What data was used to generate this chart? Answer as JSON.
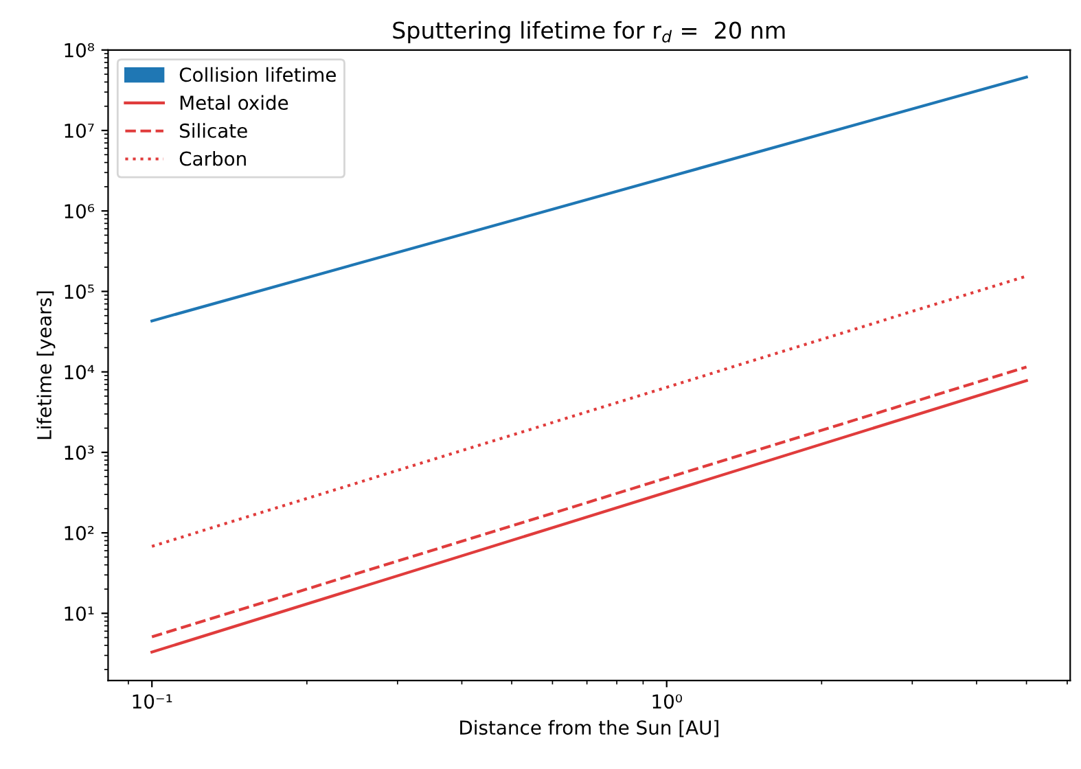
{
  "chart_data": {
    "type": "line",
    "title": "Sputtering lifetime for r$_{d}$ =  20 nm",
    "xlabel": "Distance from the Sun [AU]",
    "ylabel": "Lifetime [years]",
    "log": "xy",
    "xlim": [
      0.0822,
      6.08
    ],
    "ylim": [
      1.46,
      100000000
    ],
    "xticks": [
      {
        "value": 0.1,
        "label": "10⁻¹"
      },
      {
        "value": 1,
        "label": "10⁰"
      }
    ],
    "yticks": [
      {
        "value": 10,
        "label": "10¹"
      },
      {
        "value": 100,
        "label": "10²"
      },
      {
        "value": 1000,
        "label": "10³"
      },
      {
        "value": 10000,
        "label": "10⁴"
      },
      {
        "value": 100000,
        "label": "10⁵"
      },
      {
        "value": 1000000,
        "label": "10⁶"
      },
      {
        "value": 10000000,
        "label": "10⁷"
      },
      {
        "value": 100000000,
        "label": "10⁸"
      }
    ],
    "x": [
      0.1,
      5
    ],
    "legend": "top left",
    "grid": false,
    "series": [
      {
        "name": "Collision lifetime",
        "color": "#1f77b4",
        "values": [
          43000,
          46000000
        ]
      },
      {
        "name": "Metal oxide",
        "color": "#e03c3c",
        "line_style": "solid",
        "values": [
          3.3,
          7800
        ]
      },
      {
        "name": "Silicate",
        "color": "#e03c3c",
        "line_style": "dashed",
        "values": [
          5.1,
          11500
        ]
      },
      {
        "name": "Carbon",
        "color": "#e03c3c",
        "line_style": "dotted",
        "values": [
          68,
          155000
        ]
      }
    ]
  }
}
